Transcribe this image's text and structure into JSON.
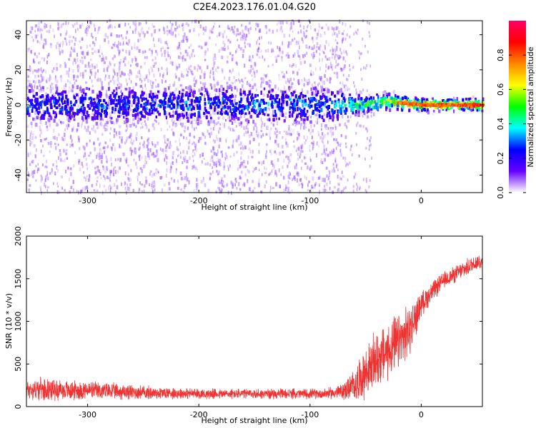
{
  "title": "C2E4.2023.176.01.04.G20",
  "chart_data": [
    {
      "type": "heatmap",
      "xlabel": "Height of straight line (km)",
      "ylabel": "Frequency (Hz)",
      "xlim": [
        -355,
        55
      ],
      "ylim": [
        -50,
        48
      ],
      "xticks": [
        -300,
        -200,
        -100,
        0
      ],
      "xtick_labels": [
        "-300",
        "-200",
        "-100",
        "0"
      ],
      "yticks": [
        -40,
        -20,
        0,
        20,
        40
      ],
      "ytick_labels": [
        "-40",
        "-20",
        "0",
        "20",
        "40"
      ],
      "colorbar": {
        "label": "Normalized spectral amplitude",
        "range": [
          0,
          1
        ],
        "ticks": [
          0.0,
          0.2,
          0.4,
          0.6,
          0.8
        ],
        "tick_labels": [
          "0.0",
          "0.2",
          "0.4",
          "0.6",
          "0.8"
        ],
        "colormap": [
          "#ffffff",
          "#6600ff",
          "#0000ff",
          "#00ffff",
          "#00ff00",
          "#ffff00",
          "#ff8800",
          "#ff0000",
          "#ff0066"
        ]
      },
      "description_points": [
        {
          "x": -355,
          "center_hz": 0,
          "band_halfwidth_hz": 10,
          "peak_amp": 0.3
        },
        {
          "x": -80,
          "center_hz": 0,
          "band_halfwidth_hz": 10,
          "peak_amp": 0.35
        },
        {
          "x": -60,
          "center_hz": 0,
          "band_halfwidth_hz": 5,
          "peak_amp": 0.5
        },
        {
          "x": -30,
          "center_hz": 2,
          "band_halfwidth_hz": 4,
          "peak_amp": 0.65
        },
        {
          "x": 0,
          "center_hz": 0,
          "band_halfwidth_hz": 3,
          "peak_amp": 0.85
        },
        {
          "x": 55,
          "center_hz": 0,
          "band_halfwidth_hz": 3,
          "peak_amp": 0.85
        }
      ]
    },
    {
      "type": "line",
      "xlabel": "Height of straight line (km)",
      "ylabel": "SNR (10 * v/v)",
      "xlim": [
        -355,
        55
      ],
      "ylim": [
        0,
        2000
      ],
      "xticks": [
        -300,
        -200,
        -100,
        0
      ],
      "xtick_labels": [
        "-300",
        "-200",
        "-100",
        "0"
      ],
      "yticks": [
        0,
        500,
        1000,
        1500,
        2000
      ],
      "ytick_labels": [
        "0",
        "500",
        "1000",
        "1500",
        "2000"
      ],
      "line_color": "#ee3333",
      "series": [
        {
          "x": [
            -355,
            -340,
            -320,
            -300,
            -280,
            -260,
            -240,
            -220,
            -200,
            -180,
            -160,
            -140,
            -120,
            -100,
            -90,
            -80,
            -70,
            -60,
            -50,
            -40,
            -30,
            -20,
            -10,
            0,
            10,
            20,
            30,
            40,
            50,
            55
          ],
          "y": [
            200,
            210,
            190,
            190,
            180,
            170,
            160,
            160,
            150,
            150,
            150,
            150,
            150,
            150,
            150,
            160,
            180,
            250,
            400,
            550,
            650,
            750,
            900,
            1200,
            1350,
            1480,
            1550,
            1620,
            1700,
            1700
          ],
          "spread": [
            130,
            130,
            120,
            110,
            100,
            90,
            80,
            70,
            60,
            60,
            60,
            60,
            60,
            60,
            60,
            70,
            100,
            200,
            300,
            350,
            350,
            350,
            300,
            150,
            120,
            100,
            100,
            100,
            100,
            100
          ]
        }
      ]
    }
  ]
}
